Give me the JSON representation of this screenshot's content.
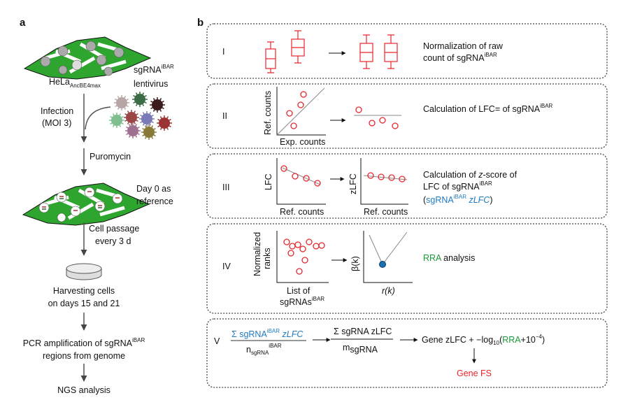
{
  "panel_a": {
    "label": "a",
    "hela": "HeLa",
    "hela_sub": "AncBE4max",
    "virus_line1": "sgRNA",
    "virus_sup": "iBAR",
    "virus_line2": "lentivirus",
    "infection_line1": "Infection",
    "infection_line2": "(MOI 3)",
    "puromycin": "Puromycin",
    "day0_line1": "Day 0 as",
    "day0_line2": "reference",
    "passage_line1": "Cell passage",
    "passage_line2": "every 3 d",
    "harvest_line1": "Harvesting cells",
    "harvest_line2": "on days 15 and 21",
    "pcr_line1": "PCR amplification of sgRNA",
    "pcr_sup": "iBAR",
    "pcr_line2": "regions from genome",
    "ngs": "NGS analysis",
    "virus_colors": [
      "#b8a6a6",
      "#3d6b46",
      "#3a1a1a",
      "#7fbf8f",
      "#9a4646",
      "#7a7ab8",
      "#9a3434",
      "#a07090",
      "#8a7a3a"
    ]
  },
  "panel_b": {
    "label": "b",
    "steps": [
      {
        "roman": "I",
        "text1": "Normalization of raw",
        "text2": "count of sgRNA",
        "sup": "iBAR"
      },
      {
        "roman": "II",
        "text1": "Calculation of LFC= of sgRNA",
        "sup": "iBAR",
        "ylabel": "Ref. counts",
        "xlabel": "Exp. counts"
      },
      {
        "roman": "III",
        "text1": "Calculation of ",
        "text1_italic": "z",
        "text1_end": "-score of",
        "text2": "LFC of sgRNA",
        "sup": "iBAR",
        "text3_a": "(",
        "text3_b": "sgRNA",
        "text3_sup": "iBAR",
        "text3_c": " zLFC",
        "text3_d": ")",
        "ylabel1": "LFC",
        "xlabel1": "Ref. counts",
        "ylabel2": "zLFC",
        "xlabel2": "Ref. counts"
      },
      {
        "roman": "IV",
        "text_green": "RRA",
        "text_rest": " analysis",
        "ylabel1_l1": "Normalized",
        "ylabel1_l2": "ranks",
        "xlabel1_l1": "List of",
        "xlabel1_l2": "sgRNAs",
        "xlabel1_sup": "iBAR",
        "ylabel2": "β(k)",
        "xlabel2": "r(k)"
      },
      {
        "roman": "V",
        "num1": "Σ sgRNA",
        "num1_sup": "iBAR",
        "num1_end": " zLFC",
        "den1": "n",
        "den1_sub": "sgRNA",
        "den1_sup": "iBAR",
        "num2": "Σ  sgRNA zLFC",
        "den2": "m",
        "den2_sub": "sgRNA",
        "gene_a": "Gene zLFC + −log",
        "gene_sub": "10",
        "gene_b": "(",
        "gene_rra": "RRA",
        "gene_c": "+10",
        "gene_sup": "−4",
        "gene_d": ")",
        "gene_fs": "Gene FS"
      }
    ]
  }
}
